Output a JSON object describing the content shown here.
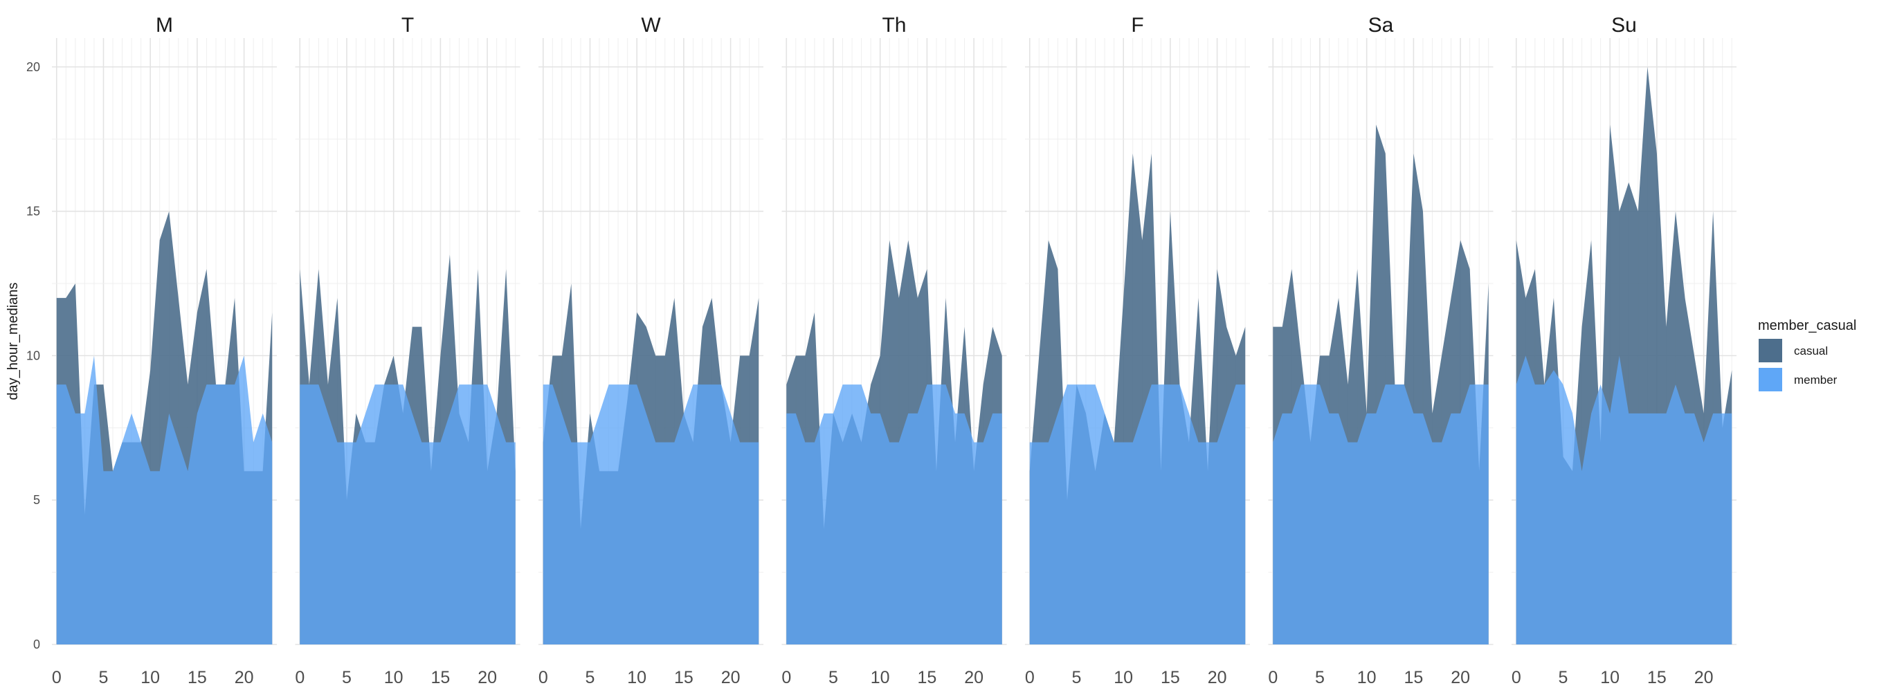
{
  "chart_data": {
    "type": "area",
    "ylabel": "day_hour_medians",
    "ylim": [
      0,
      21
    ],
    "xlim": [
      -0.5,
      23.5
    ],
    "x_ticks": [
      0,
      5,
      10,
      15,
      20
    ],
    "y_ticks": [
      0,
      5,
      10,
      15,
      20
    ],
    "grid": true,
    "legend": {
      "title": "member_casual",
      "placement": "right",
      "entries": [
        {
          "label": "casual",
          "color": "#4d6e8c"
        },
        {
          "label": "member",
          "color": "#5fa7f7"
        }
      ]
    },
    "colors": {
      "casual": "#4d6e8c",
      "member": "#5fa7f7",
      "overlap": "#3482df"
    },
    "hours": [
      0,
      1,
      2,
      3,
      4,
      5,
      6,
      7,
      8,
      9,
      10,
      11,
      12,
      13,
      14,
      15,
      16,
      17,
      18,
      19,
      20,
      21,
      22,
      23
    ],
    "panels": [
      {
        "label": "M",
        "casual": [
          12,
          12,
          12.5,
          4.5,
          9,
          9,
          6,
          7,
          7,
          7,
          9.5,
          14,
          15,
          12,
          9,
          11.5,
          13,
          9,
          9,
          12,
          6,
          6,
          6,
          11.5
        ],
        "member": [
          9,
          9,
          8,
          8,
          10,
          6,
          6,
          7,
          8,
          7,
          6,
          6,
          8,
          7,
          6,
          8,
          9,
          9,
          9,
          9,
          10,
          7,
          8,
          7
        ]
      },
      {
        "label": "T",
        "casual": [
          13,
          9,
          13,
          9,
          12,
          5,
          8,
          7,
          7,
          9,
          10,
          8,
          11,
          11,
          6,
          10,
          13.5,
          8,
          7,
          13,
          6,
          8,
          13,
          6
        ]
      },
      {
        "label": "W",
        "casual": [
          7,
          10,
          10,
          12.5,
          4,
          8,
          6,
          6,
          6,
          8.5,
          11.5,
          11,
          10,
          10,
          12,
          8,
          7,
          11,
          12,
          9,
          7,
          10,
          10,
          12
        ]
      },
      {
        "label": "Th",
        "casual": [
          9,
          10,
          10,
          11.5,
          4,
          8,
          7,
          8,
          7,
          9,
          10,
          14,
          12,
          14,
          12,
          13,
          6,
          12,
          7,
          11,
          6,
          9,
          11,
          10
        ]
      },
      {
        "label": "F",
        "casual": [
          6,
          10,
          14,
          13,
          5,
          9,
          8,
          6,
          8,
          7,
          12,
          17,
          14,
          17,
          6,
          15,
          9,
          7,
          12,
          6,
          13,
          11,
          10,
          11
        ]
      },
      {
        "label": "Sa",
        "casual": [
          11,
          11,
          13,
          10,
          7,
          10,
          10,
          12,
          9,
          13,
          8,
          18,
          17,
          9,
          9,
          17,
          15,
          8,
          10,
          12,
          14,
          13,
          6,
          12.5
        ]
      },
      {
        "label": "Su",
        "casual": [
          14,
          12,
          13,
          9,
          12,
          6.5,
          6,
          11,
          14,
          7,
          18,
          15,
          16,
          15,
          20,
          17,
          11,
          15,
          12,
          10,
          8,
          15,
          7.5,
          9.5
        ],
        "member": [
          9,
          10,
          9,
          9,
          9.5,
          9,
          8,
          6,
          8,
          9,
          8,
          10,
          8,
          8,
          8,
          8,
          8,
          9,
          8,
          8,
          7,
          8,
          8,
          8
        ]
      }
    ]
  }
}
